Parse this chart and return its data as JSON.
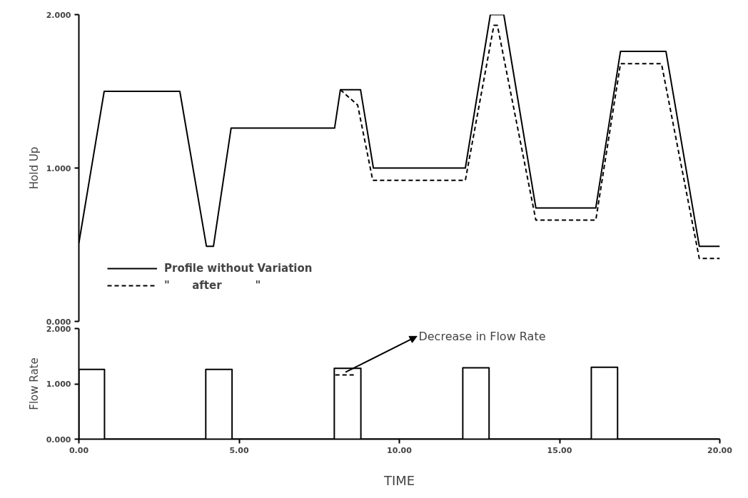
{
  "chart_data": [
    {
      "type": "line",
      "ylabel": "Hold Up",
      "xlim": [
        0,
        20
      ],
      "ylim": [
        0,
        2
      ],
      "yticks": [
        {
          "value": 0,
          "label": "0.000"
        },
        {
          "value": 1,
          "label": "1.000"
        },
        {
          "value": 2,
          "label": "2.000"
        }
      ],
      "tick_labels": "y",
      "grid": false,
      "legend": "bottom left",
      "marker": "none",
      "series": [
        {
          "name": "Profile without Variation",
          "color": "#000000",
          "line_style": "solid",
          "x": [
            0,
            0.79,
            3.15,
            3.98,
            4.2,
            4.75,
            7.98,
            8.16,
            8.79,
            9.19,
            12.06,
            12.84,
            13.26,
            14.26,
            16.13,
            16.9,
            18.32,
            19.36,
            20
          ],
          "values": [
            0.51,
            1.5,
            1.5,
            0.49,
            0.49,
            1.26,
            1.26,
            1.51,
            1.51,
            1.0,
            1.0,
            2.0,
            2.0,
            0.74,
            0.74,
            1.76,
            1.76,
            0.49,
            0.49
          ]
        },
        {
          "name": "\"      after         \"",
          "color": "#000000",
          "line_style": "dashed",
          "x": [
            8.16,
            8.7,
            9.17,
            12.06,
            12.95,
            13.06,
            14.26,
            16.13,
            16.9,
            18.18,
            19.36,
            20
          ],
          "values": [
            1.51,
            1.41,
            0.92,
            0.92,
            1.93,
            1.93,
            0.66,
            0.66,
            1.68,
            1.68,
            0.41,
            0.41
          ]
        }
      ]
    },
    {
      "type": "line",
      "ylabel": "Flow Rate",
      "xlabel": "TIME",
      "xlim": [
        0,
        20
      ],
      "ylim": [
        0,
        2
      ],
      "xticks": [
        {
          "value": 0,
          "label": "0.00"
        },
        {
          "value": 5,
          "label": "5.00"
        },
        {
          "value": 10,
          "label": "10.00"
        },
        {
          "value": 15,
          "label": "15.00"
        },
        {
          "value": 20,
          "label": "20.00"
        }
      ],
      "yticks": [
        {
          "value": 0,
          "label": "0.000"
        },
        {
          "value": 1,
          "label": "1.000"
        },
        {
          "value": 2,
          "label": "2.000"
        }
      ],
      "grid": false,
      "marker": "none",
      "annotations": [
        "Decrease in Flow Rate"
      ],
      "series": [
        {
          "color": "#000000",
          "line_style": "solid",
          "x": [
            0,
            0,
            0.8,
            0.8,
            3.96,
            3.96,
            4.78,
            4.78,
            7.97,
            7.97,
            8.8,
            8.8,
            11.98,
            11.98,
            12.8,
            12.8,
            15.99,
            15.99,
            16.81,
            16.81,
            20
          ],
          "values": [
            0,
            1.26,
            1.26,
            0,
            0,
            1.26,
            1.26,
            0,
            0,
            1.28,
            1.28,
            0,
            0,
            1.29,
            1.29,
            0,
            0,
            1.3,
            1.3,
            0,
            0
          ]
        },
        {
          "color": "#000000",
          "line_style": "dashed",
          "x": [
            8.0,
            8.64
          ],
          "values": [
            1.16,
            1.16
          ]
        }
      ]
    }
  ]
}
